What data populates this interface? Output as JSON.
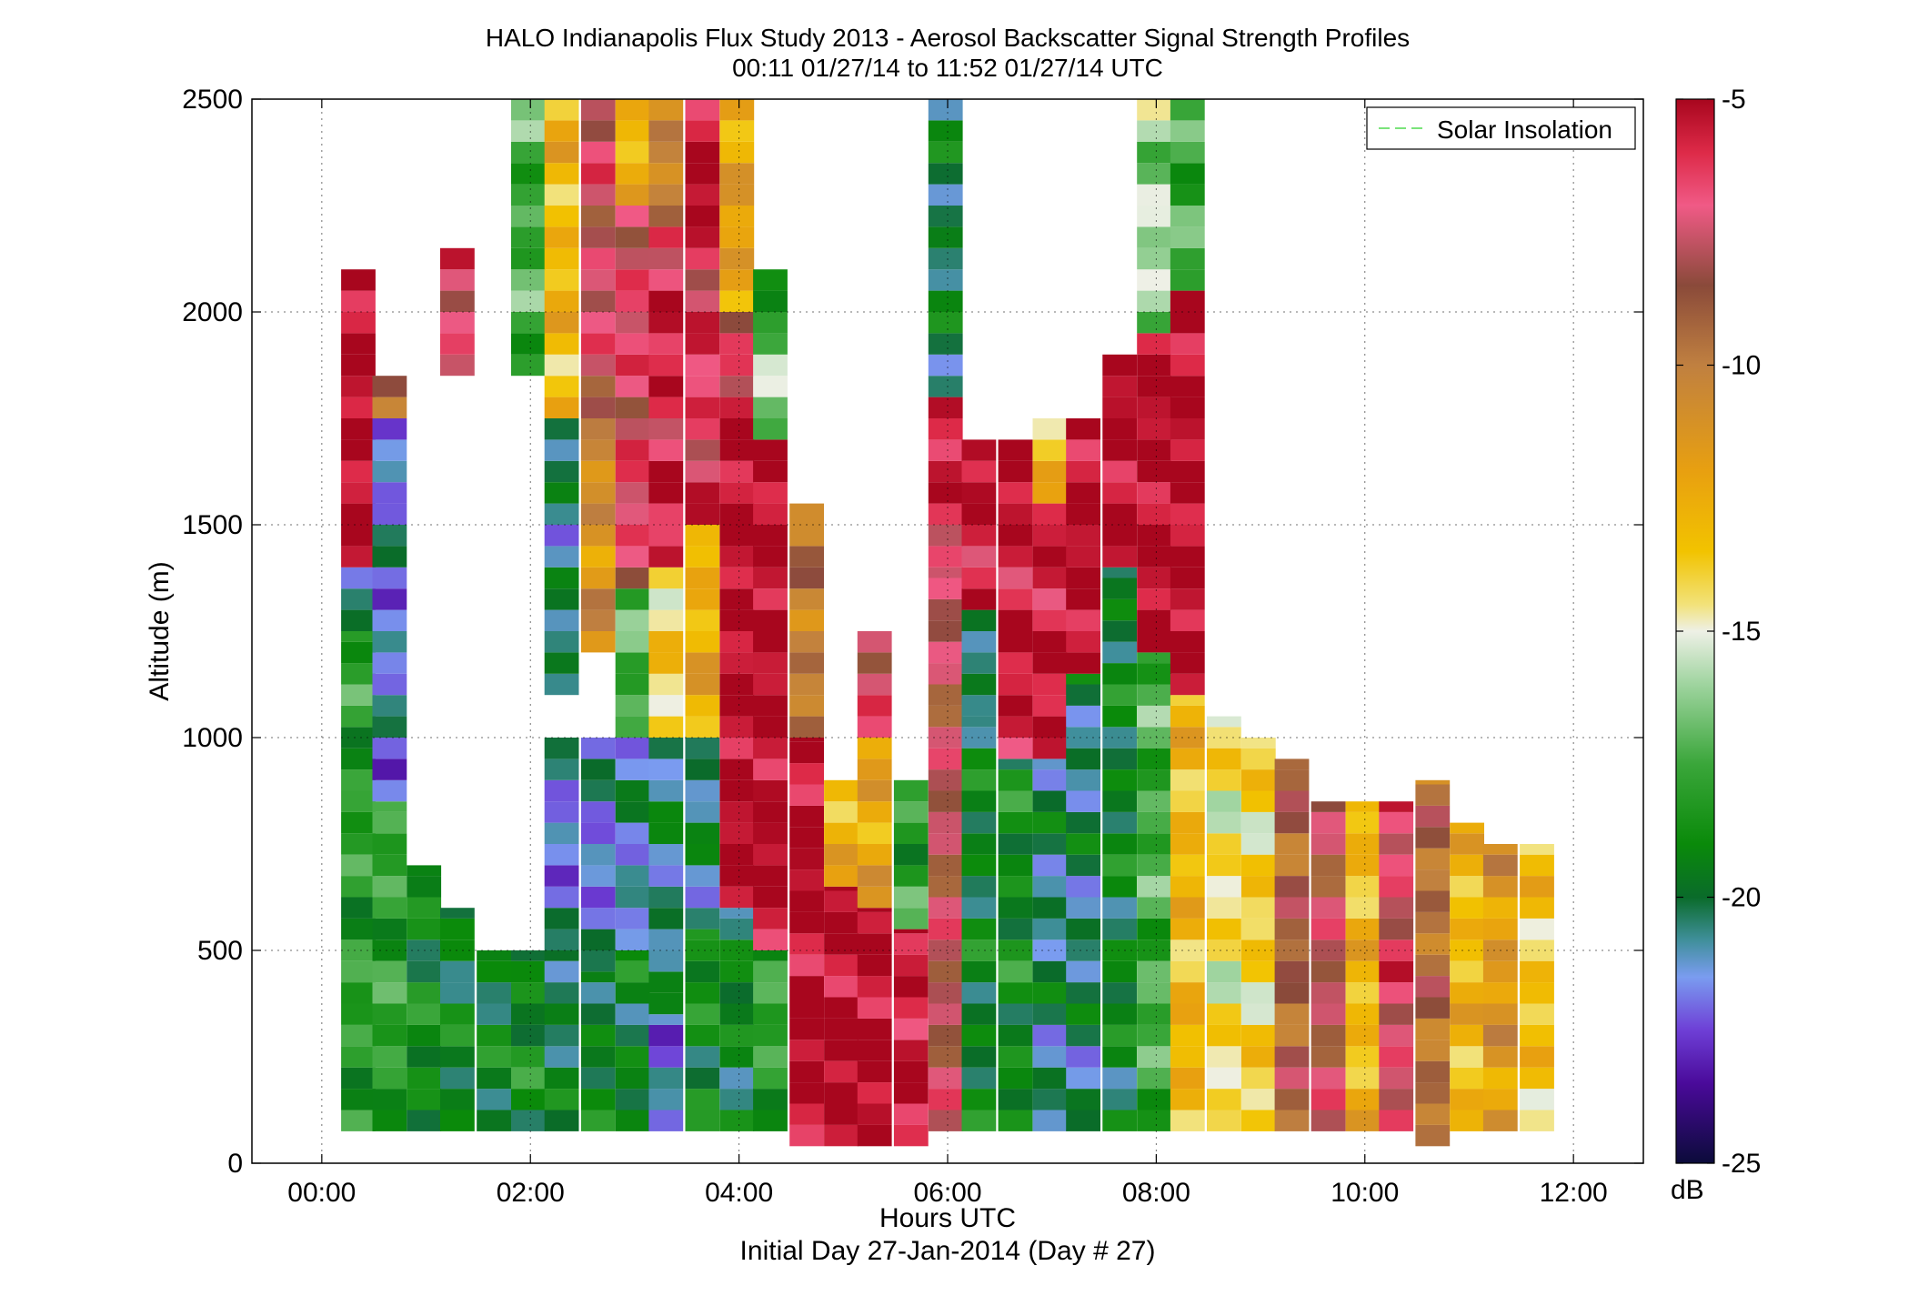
{
  "chart_data": {
    "type": "heatmap",
    "title": "HALO Indianapolis Flux Study 2013 - Aerosol Backscatter Signal Strength Profiles",
    "subtitle": "00:11 01/27/14 to 11:52 01/27/14  UTC",
    "xlabel": "Hours UTC",
    "xlabel2": "Initial Day 27-Jan-2014 (Day # 27)",
    "ylabel": "Altitude (m)",
    "xlim": [
      -0.67,
      12.67
    ],
    "ylim": [
      0,
      2500
    ],
    "x_ticks": [
      0,
      2,
      4,
      6,
      8,
      10,
      12
    ],
    "x_tick_labels": [
      "00:00",
      "02:00",
      "04:00",
      "06:00",
      "08:00",
      "10:00",
      "12:00"
    ],
    "y_ticks": [
      0,
      500,
      1000,
      1500,
      2000,
      2500
    ],
    "y_tick_labels": [
      "0",
      "500",
      "1000",
      "1500",
      "2000",
      "2500"
    ],
    "grid": true,
    "legend": {
      "entries": [
        "Solar Insolation"
      ],
      "placement": "top-right",
      "line_color": "#7be37b"
    },
    "colorbar": {
      "range": [
        -25,
        -5
      ],
      "ticks": [
        -5,
        -10,
        -15,
        -20,
        -25
      ],
      "tick_labels": [
        "-5",
        "-10",
        "-15",
        "-20",
        "-25"
      ],
      "unit": "dB",
      "stops": [
        {
          "v": -25.0,
          "c": "#0b0b3a"
        },
        {
          "v": -23.5,
          "c": "#4a0a9a"
        },
        {
          "v": -22.5,
          "c": "#6e3fd6"
        },
        {
          "v": -21.5,
          "c": "#7a9cf0"
        },
        {
          "v": -20.8,
          "c": "#3f8f9a"
        },
        {
          "v": -20.0,
          "c": "#0a6b2a"
        },
        {
          "v": -19.0,
          "c": "#0a8a0a"
        },
        {
          "v": -17.5,
          "c": "#3aa63a"
        },
        {
          "v": -16.0,
          "c": "#9fd49f"
        },
        {
          "v": -15.0,
          "c": "#eef0e6"
        },
        {
          "v": -14.5,
          "c": "#f2e27a"
        },
        {
          "v": -13.5,
          "c": "#f2c300"
        },
        {
          "v": -12.0,
          "c": "#e8a010"
        },
        {
          "v": -10.0,
          "c": "#c08040"
        },
        {
          "v": -8.5,
          "c": "#8a4a3a"
        },
        {
          "v": -7.0,
          "c": "#f05a86"
        },
        {
          "v": -6.0,
          "c": "#dd2a48"
        },
        {
          "v": -5.0,
          "c": "#a8061e"
        }
      ]
    },
    "bin_height_m": 50,
    "profiles": [
      {
        "t": 0.35,
        "segs": [
          [
            75,
            1250,
            -18.2
          ],
          [
            1250,
            1400,
            -20.5
          ],
          [
            1400,
            2000,
            -5.0
          ],
          [
            2000,
            2100,
            -5.0
          ]
        ]
      },
      {
        "t": 0.65,
        "segs": [
          [
            75,
            850,
            -18.0
          ],
          [
            850,
            1750,
            -21.5
          ],
          [
            1750,
            1850,
            -10.0
          ]
        ]
      },
      {
        "t": 0.98,
        "segs": [
          [
            75,
            700,
            -19.0
          ]
        ]
      },
      {
        "t": 1.3,
        "segs": [
          [
            75,
            600,
            -19.5
          ],
          [
            1850,
            2150,
            -7.0
          ]
        ]
      },
      {
        "t": 1.65,
        "segs": [
          [
            75,
            500,
            -19.5
          ]
        ]
      },
      {
        "t": 1.98,
        "segs": [
          [
            75,
            500,
            -19.0
          ],
          [
            1850,
            2500,
            -17.5
          ]
        ]
      },
      {
        "t": 2.3,
        "segs": [
          [
            75,
            500,
            -20.0
          ],
          [
            500,
            1000,
            -21.6
          ],
          [
            1100,
            1750,
            -20.5
          ],
          [
            1750,
            2500,
            -13.0
          ]
        ]
      },
      {
        "t": 2.65,
        "segs": [
          [
            75,
            450,
            -19.5
          ],
          [
            450,
            1000,
            -21.5
          ],
          [
            1200,
            1750,
            -11.0
          ],
          [
            1750,
            2500,
            -7.5
          ]
        ]
      },
      {
        "t": 2.98,
        "segs": [
          [
            75,
            500,
            -19.5
          ],
          [
            500,
            1000,
            -21.0
          ],
          [
            1000,
            1350,
            -17.5
          ],
          [
            1350,
            2250,
            -7.0
          ],
          [
            2250,
            2500,
            -13.0
          ]
        ]
      },
      {
        "t": 3.3,
        "segs": [
          [
            75,
            350,
            -21.5
          ],
          [
            350,
            1000,
            -20.5
          ],
          [
            1000,
            1400,
            -14.0
          ],
          [
            1400,
            2200,
            -6.0
          ],
          [
            2200,
            2500,
            -10.5
          ]
        ]
      },
      {
        "t": 3.65,
        "segs": [
          [
            75,
            550,
            -19.0
          ],
          [
            550,
            1000,
            -20.5
          ],
          [
            1000,
            1500,
            -12.5
          ],
          [
            1500,
            2200,
            -6.5
          ],
          [
            2200,
            2500,
            -5.0
          ]
        ]
      },
      {
        "t": 3.98,
        "segs": [
          [
            75,
            600,
            -19.5
          ],
          [
            600,
            1800,
            -5.0
          ],
          [
            1800,
            2000,
            -7.5
          ],
          [
            2000,
            2500,
            -12.0
          ]
        ]
      },
      {
        "t": 4.3,
        "segs": [
          [
            75,
            500,
            -18.0
          ],
          [
            500,
            1700,
            -5.0
          ],
          [
            1700,
            2000,
            -16.5
          ],
          [
            2000,
            2100,
            -19.5
          ]
        ]
      },
      {
        "t": 4.65,
        "segs": [
          [
            40,
            1000,
            -5.0
          ],
          [
            1000,
            1550,
            -10.0
          ]
        ]
      },
      {
        "t": 4.98,
        "segs": [
          [
            40,
            650,
            -5.0
          ],
          [
            650,
            900,
            -12.5
          ]
        ]
      },
      {
        "t": 5.3,
        "segs": [
          [
            40,
            600,
            -5.0
          ],
          [
            600,
            1000,
            -12.0
          ],
          [
            1000,
            1250,
            -7.0
          ]
        ]
      },
      {
        "t": 5.65,
        "segs": [
          [
            40,
            550,
            -5.5
          ],
          [
            550,
            900,
            -18.0
          ]
        ]
      },
      {
        "t": 5.98,
        "segs": [
          [
            75,
            1400,
            -8.0
          ],
          [
            1400,
            1800,
            -6.0
          ],
          [
            1800,
            2500,
            -20.0
          ]
        ]
      },
      {
        "t": 6.3,
        "segs": [
          [
            75,
            1050,
            -19.5
          ],
          [
            1050,
            1300,
            -20.5
          ],
          [
            1300,
            1700,
            -5.5
          ]
        ]
      },
      {
        "t": 6.65,
        "segs": [
          [
            75,
            950,
            -19.0
          ],
          [
            950,
            1700,
            -5.5
          ]
        ]
      },
      {
        "t": 6.98,
        "segs": [
          [
            75,
            950,
            -20.5
          ],
          [
            950,
            1550,
            -5.5
          ],
          [
            1550,
            1750,
            -13.0
          ]
        ]
      },
      {
        "t": 7.3,
        "segs": [
          [
            75,
            1150,
            -20.5
          ],
          [
            1150,
            1750,
            -5.0
          ]
        ]
      },
      {
        "t": 7.65,
        "segs": [
          [
            75,
            1400,
            -19.5
          ],
          [
            1400,
            1900,
            -5.0
          ]
        ]
      },
      {
        "t": 7.98,
        "segs": [
          [
            75,
            1200,
            -17.5
          ],
          [
            1200,
            1950,
            -5.0
          ],
          [
            1950,
            2500,
            -16.0
          ]
        ]
      },
      {
        "t": 8.3,
        "segs": [
          [
            75,
            1100,
            -13.0
          ],
          [
            1100,
            2050,
            -5.0
          ],
          [
            2050,
            2500,
            -17.5
          ]
        ]
      },
      {
        "t": 8.65,
        "segs": [
          [
            75,
            1050,
            -14.5
          ]
        ]
      },
      {
        "t": 8.98,
        "segs": [
          [
            75,
            1000,
            -14.0
          ]
        ]
      },
      {
        "t": 9.3,
        "segs": [
          [
            75,
            950,
            -9.0
          ]
        ]
      },
      {
        "t": 9.65,
        "segs": [
          [
            75,
            850,
            -8.0
          ]
        ]
      },
      {
        "t": 9.98,
        "segs": [
          [
            75,
            850,
            -13.0
          ]
        ]
      },
      {
        "t": 10.3,
        "segs": [
          [
            75,
            850,
            -7.0
          ]
        ]
      },
      {
        "t": 10.65,
        "segs": [
          [
            40,
            900,
            -9.5
          ]
        ]
      },
      {
        "t": 10.98,
        "segs": [
          [
            75,
            800,
            -13.0
          ]
        ]
      },
      {
        "t": 11.3,
        "segs": [
          [
            75,
            750,
            -11.5
          ]
        ]
      },
      {
        "t": 11.65,
        "segs": [
          [
            75,
            750,
            -13.5
          ]
        ]
      }
    ]
  }
}
